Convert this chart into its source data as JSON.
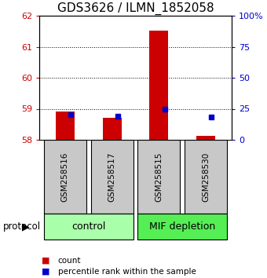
{
  "title": "GDS3626 / ILMN_1852058",
  "samples": [
    "GSM258516",
    "GSM258517",
    "GSM258515",
    "GSM258530"
  ],
  "count_values": [
    58.92,
    58.72,
    61.53,
    58.12
  ],
  "percentile_values": [
    20.5,
    19.0,
    25.0,
    18.5
  ],
  "count_base": 58.0,
  "ylim_left": [
    58.0,
    62.0
  ],
  "ylim_right": [
    0,
    100
  ],
  "yticks_left": [
    58,
    59,
    60,
    61,
    62
  ],
  "yticks_right": [
    0,
    25,
    50,
    75,
    100
  ],
  "ytick_labels_right": [
    "0",
    "25",
    "50",
    "75",
    "100%"
  ],
  "groups": [
    {
      "label": "control",
      "samples": [
        0,
        1
      ],
      "color": "#aaffaa"
    },
    {
      "label": "MIF depletion",
      "samples": [
        2,
        3
      ],
      "color": "#55ee55"
    }
  ],
  "bar_color": "#cc0000",
  "marker_color": "#0000cc",
  "bar_width": 0.4,
  "bg_color": "#c8c8c8",
  "title_fontsize": 11,
  "tick_fontsize": 8,
  "legend_fontsize": 7.5,
  "protocol_fontsize": 8.5,
  "group_fontsize": 9,
  "sample_fontsize": 7.5
}
